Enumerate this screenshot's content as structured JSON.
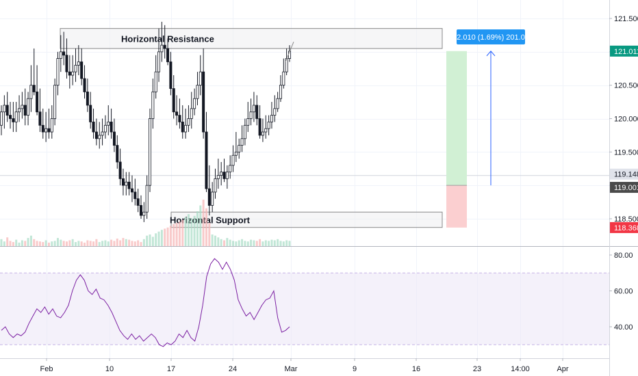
{
  "chart_data": [
    {
      "type": "candlestick",
      "y_ticks": [
        "121.500",
        "121.000",
        "120.500",
        "120.000",
        "119.500",
        "119.000",
        "118.500"
      ],
      "ylim": [
        118.3,
        121.7
      ],
      "x_ticks": [
        "Feb",
        "10",
        "17",
        "24",
        "Mar",
        "9",
        "16",
        "23",
        "14:00",
        "Apr"
      ],
      "price_labels": {
        "current": {
          "text": "121.011",
          "value": 121.011,
          "color": "#089981"
        },
        "marker": {
          "text": "119.148",
          "value": 119.148,
          "color": "#e0e3eb"
        },
        "entry": {
          "text": "119.001",
          "value": 119.001,
          "color": "#4a4a4a"
        },
        "stop": {
          "text": "118.368",
          "value": 118.368,
          "color": "#f23645"
        }
      },
      "resistance_zone": {
        "label": "Horizontal Resistance",
        "low": 121.05,
        "high": 121.35,
        "start": "Jan 27",
        "end": "Mar 22"
      },
      "support_zone": {
        "label": "Horizontal Support",
        "low": 118.37,
        "high": 118.6,
        "start": "Feb 16",
        "end": "Mar 22"
      },
      "position": {
        "entry": 119.001,
        "target": 121.011,
        "stop": 118.368,
        "start": "Mar 23",
        "end": "Mar 27",
        "label": "2.010 (1.69%) 201.0",
        "profit_color": "#d1f0d4",
        "loss_color": "#fbcfd0"
      },
      "arrow": {
        "from": 119.001,
        "to": 121.011,
        "date": "Mar 29"
      },
      "series": [
        {
          "name": "",
          "open": [
            119.9,
            120.1,
            120.2,
            120.05,
            120.0,
            119.95,
            120.1,
            120.15,
            120.2,
            120.05,
            120.3,
            120.5,
            120.4,
            120.1,
            119.9,
            119.8,
            119.85,
            119.8,
            120.0,
            120.5,
            120.9,
            121.0,
            120.95,
            120.7,
            120.65,
            120.7,
            120.8,
            120.85,
            120.6,
            120.4,
            120.2,
            119.95,
            119.8,
            119.7,
            119.75,
            119.8,
            119.9,
            119.95,
            119.8,
            119.6,
            119.35,
            119.1,
            119.0,
            119.05,
            118.95,
            118.9,
            118.8,
            118.7,
            118.55,
            118.6,
            119.0,
            120.0,
            120.4,
            120.7,
            121.0,
            121.1,
            121.05,
            120.85,
            120.45,
            120.1,
            120.05,
            119.95,
            119.8,
            119.9,
            120.0,
            120.15,
            120.3,
            120.5,
            120.7,
            119.8,
            118.95,
            118.7,
            118.9,
            119.1,
            119.15,
            119.2,
            119.1,
            119.2,
            119.3,
            119.45,
            119.5,
            119.6,
            119.7,
            119.9,
            120.0,
            120.1,
            120.2,
            120.0,
            119.75,
            119.8,
            119.85,
            119.95,
            120.05,
            120.15,
            120.3,
            120.5,
            120.7,
            120.9
          ],
          "high": [
            120.2,
            120.35,
            120.4,
            120.25,
            120.25,
            120.25,
            120.35,
            120.4,
            120.45,
            120.4,
            120.8,
            121.05,
            120.8,
            120.45,
            120.15,
            120.1,
            120.15,
            120.2,
            120.6,
            121.0,
            121.25,
            121.3,
            121.2,
            120.95,
            120.95,
            121.05,
            121.1,
            121.05,
            120.8,
            120.6,
            120.4,
            120.15,
            120.0,
            119.95,
            120.0,
            120.05,
            120.2,
            120.15,
            120.0,
            119.75,
            119.55,
            119.25,
            119.2,
            119.2,
            119.15,
            119.1,
            118.95,
            118.85,
            118.75,
            119.15,
            120.15,
            120.6,
            120.95,
            121.35,
            121.45,
            121.4,
            121.2,
            121.0,
            120.65,
            120.35,
            120.3,
            120.2,
            120.15,
            120.2,
            120.4,
            120.45,
            120.7,
            120.95,
            121.05,
            120.1,
            119.3,
            119.05,
            119.25,
            119.4,
            119.35,
            119.4,
            119.3,
            119.45,
            119.6,
            119.8,
            119.7,
            119.9,
            120.0,
            120.25,
            120.3,
            120.4,
            120.35,
            120.2,
            120.0,
            120.05,
            120.05,
            120.25,
            120.35,
            120.4,
            120.65,
            120.9,
            121.05,
            121.1
          ],
          "low": [
            119.75,
            119.85,
            119.95,
            119.85,
            119.8,
            119.8,
            119.95,
            120.0,
            119.9,
            119.9,
            120.1,
            120.35,
            120.05,
            119.8,
            119.7,
            119.65,
            119.7,
            119.7,
            119.9,
            120.35,
            120.7,
            120.8,
            120.6,
            120.45,
            120.5,
            120.55,
            120.65,
            120.5,
            120.3,
            120.1,
            119.85,
            119.7,
            119.6,
            119.55,
            119.6,
            119.7,
            119.75,
            119.7,
            119.5,
            119.25,
            119.0,
            118.85,
            118.85,
            118.85,
            118.75,
            118.7,
            118.6,
            118.5,
            118.45,
            118.5,
            118.9,
            119.85,
            120.3,
            120.55,
            120.85,
            120.9,
            120.8,
            120.35,
            120.0,
            119.9,
            119.85,
            119.7,
            119.7,
            119.8,
            119.85,
            120.05,
            120.2,
            120.35,
            119.7,
            118.9,
            118.55,
            118.6,
            118.8,
            118.95,
            119.0,
            119.05,
            118.95,
            119.1,
            119.2,
            119.35,
            119.4,
            119.5,
            119.6,
            119.8,
            119.9,
            119.95,
            119.9,
            119.7,
            119.65,
            119.7,
            119.75,
            119.85,
            119.95,
            120.1,
            120.25,
            120.45,
            120.65,
            120.85
          ],
          "close": [
            120.1,
            120.2,
            120.05,
            120.0,
            119.95,
            120.1,
            120.15,
            120.2,
            120.05,
            120.3,
            120.5,
            120.4,
            120.1,
            119.9,
            119.8,
            119.85,
            119.8,
            120.0,
            120.5,
            120.9,
            121.0,
            120.95,
            120.7,
            120.65,
            120.7,
            120.8,
            120.85,
            120.6,
            120.4,
            120.2,
            119.95,
            119.8,
            119.7,
            119.75,
            119.8,
            119.9,
            119.95,
            119.8,
            119.6,
            119.35,
            119.1,
            119.0,
            119.05,
            118.95,
            118.9,
            118.8,
            118.7,
            118.55,
            118.6,
            119.0,
            120.0,
            120.4,
            120.7,
            121.0,
            121.1,
            121.05,
            120.85,
            120.45,
            120.1,
            120.05,
            119.95,
            119.8,
            119.9,
            120.0,
            120.15,
            120.3,
            120.5,
            120.7,
            119.8,
            118.95,
            118.7,
            118.9,
            119.1,
            119.15,
            119.2,
            119.1,
            119.2,
            119.3,
            119.45,
            119.5,
            119.6,
            119.7,
            119.9,
            120.0,
            120.1,
            120.2,
            120.0,
            119.75,
            119.8,
            119.85,
            119.95,
            120.05,
            120.15,
            120.3,
            120.5,
            120.7,
            120.9,
            121.01
          ],
          "volume": [
            12,
            8,
            15,
            9,
            7,
            11,
            6,
            10,
            9,
            14,
            18,
            12,
            9,
            8,
            7,
            10,
            6,
            8,
            9,
            14,
            11,
            9,
            8,
            10,
            12,
            7,
            9,
            8,
            6,
            10,
            9,
            8,
            12,
            7,
            9,
            10,
            8,
            11,
            9,
            13,
            10,
            14,
            12,
            11,
            9,
            8,
            10,
            7,
            12,
            18,
            20,
            16,
            22,
            25,
            28,
            30,
            32,
            35,
            38,
            40,
            42,
            45,
            50,
            55,
            48,
            52,
            60,
            70,
            80,
            65,
            40,
            20,
            18,
            15,
            12,
            10,
            14,
            11,
            9,
            8,
            10,
            12,
            9,
            8,
            11,
            10,
            9,
            12,
            8,
            10,
            9,
            11,
            10,
            12,
            9,
            8,
            10,
            9
          ]
        }
      ]
    },
    {
      "type": "line",
      "y_ticks": [
        "80.00",
        "60.00",
        "40.00"
      ],
      "ylim": [
        26,
        83
      ],
      "band": [
        30,
        70
      ],
      "series": [
        {
          "name": "",
          "values": [
            38,
            40,
            36,
            34,
            36,
            35,
            37,
            42,
            46,
            50,
            48,
            51,
            47,
            50,
            46,
            45,
            48,
            52,
            60,
            66,
            69,
            66,
            60,
            58,
            61,
            56,
            55,
            52,
            48,
            43,
            38,
            35,
            33,
            36,
            33,
            35,
            32,
            34,
            36,
            34,
            30,
            29,
            31,
            30,
            32,
            36,
            34,
            38,
            34,
            32,
            40,
            52,
            68,
            75,
            78,
            76,
            72,
            76,
            72,
            66,
            55,
            50,
            46,
            48,
            44,
            48,
            52,
            55,
            56,
            60,
            45,
            37,
            38,
            40
          ]
        }
      ]
    }
  ]
}
